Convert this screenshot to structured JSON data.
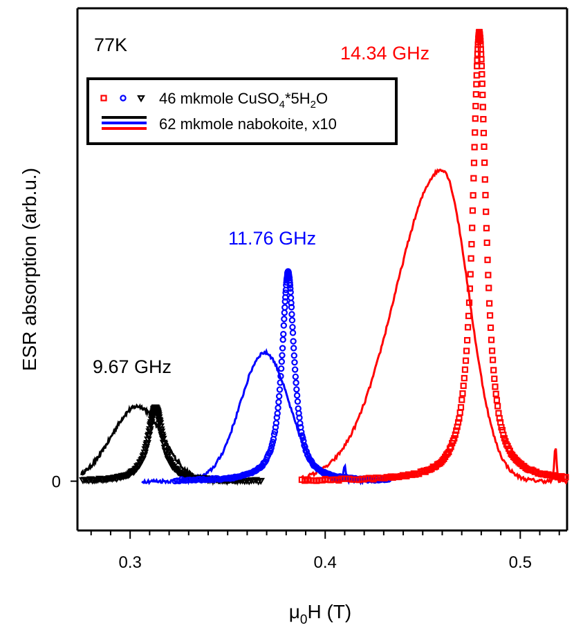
{
  "chart_data": {
    "type": "line",
    "title": "",
    "xlabel": "μ0H (T)",
    "xlabel_parts": {
      "main": "μ",
      "sub": "0",
      "rest": "H (T)"
    },
    "ylabel": "ESR absorption (arb.u.)",
    "xlim": [
      0.273,
      0.524
    ],
    "ylim": [
      -0.11,
      1.055
    ],
    "x_ticks": [
      {
        "value": 0.3,
        "label": "0.3"
      },
      {
        "value": 0.4,
        "label": "0.4"
      },
      {
        "value": 0.5,
        "label": "0.5"
      }
    ],
    "x_minor_step": 0.01,
    "y_ticks": [
      {
        "value": 0,
        "label": "0"
      }
    ],
    "grid": false,
    "legend_position": "top-left",
    "legend": [
      {
        "label": "46 mkmole CuSO4*5H2O",
        "main": "46 mkmole CuSO",
        "sub1": "4",
        "mid": "*5H",
        "sub2": "2",
        "end": "O",
        "style": "markers"
      },
      {
        "label": "62 mkmole nabokoite, x10",
        "style": "lines"
      }
    ],
    "annotations": [
      {
        "text": "77K",
        "color": "#000000"
      },
      {
        "text": "14.34 GHz",
        "color": "#ff0000"
      },
      {
        "text": "11.76 GHz",
        "color": "#0000ff"
      },
      {
        "text": "9.67 GHz",
        "color": "#000000"
      }
    ],
    "series": [
      {
        "kind": "reference",
        "marker": "triangle-down",
        "color": "#000000",
        "x0": 0.275,
        "x1": 0.367,
        "n": 64,
        "center": 0.313,
        "width": 0.0045,
        "peak": 0.163,
        "shape": "lorentz"
      },
      {
        "kind": "reference",
        "marker": "circle",
        "color": "#0000ff",
        "x0": 0.323,
        "x1": 0.433,
        "n": 76,
        "center": 0.381,
        "width": 0.0038,
        "peak": 0.466,
        "shape": "lorentz"
      },
      {
        "kind": "reference",
        "marker": "square",
        "color": "#ff0000",
        "x0": 0.388,
        "x1": 0.524,
        "n": 86,
        "center": 0.479,
        "width": 0.0042,
        "peak": 1.0,
        "shape": "lorentz"
      },
      {
        "kind": "nabokoite",
        "color": "#000000",
        "x0": 0.275,
        "x1": 0.357,
        "center": 0.304,
        "sigma_left": 0.0135,
        "sigma_right": 0.0125,
        "peak": 0.167,
        "shape": "gauss"
      },
      {
        "kind": "nabokoite",
        "color": "#0000ff",
        "x0": 0.306,
        "x1": 0.428,
        "center": 0.369,
        "sigma_left": 0.0125,
        "sigma_right": 0.0125,
        "peak": 0.287,
        "shape": "gauss",
        "spike_x": 0.41,
        "spike_h": 0.03
      },
      {
        "kind": "nabokoite",
        "color": "#ff0000",
        "x0": 0.388,
        "x1": 0.524,
        "center": 0.46,
        "sigma_left": 0.024,
        "sigma_right": 0.0135,
        "peak": 0.695,
        "shape": "gauss",
        "spike_x": 0.518,
        "spike_h": 0.075
      }
    ]
  }
}
